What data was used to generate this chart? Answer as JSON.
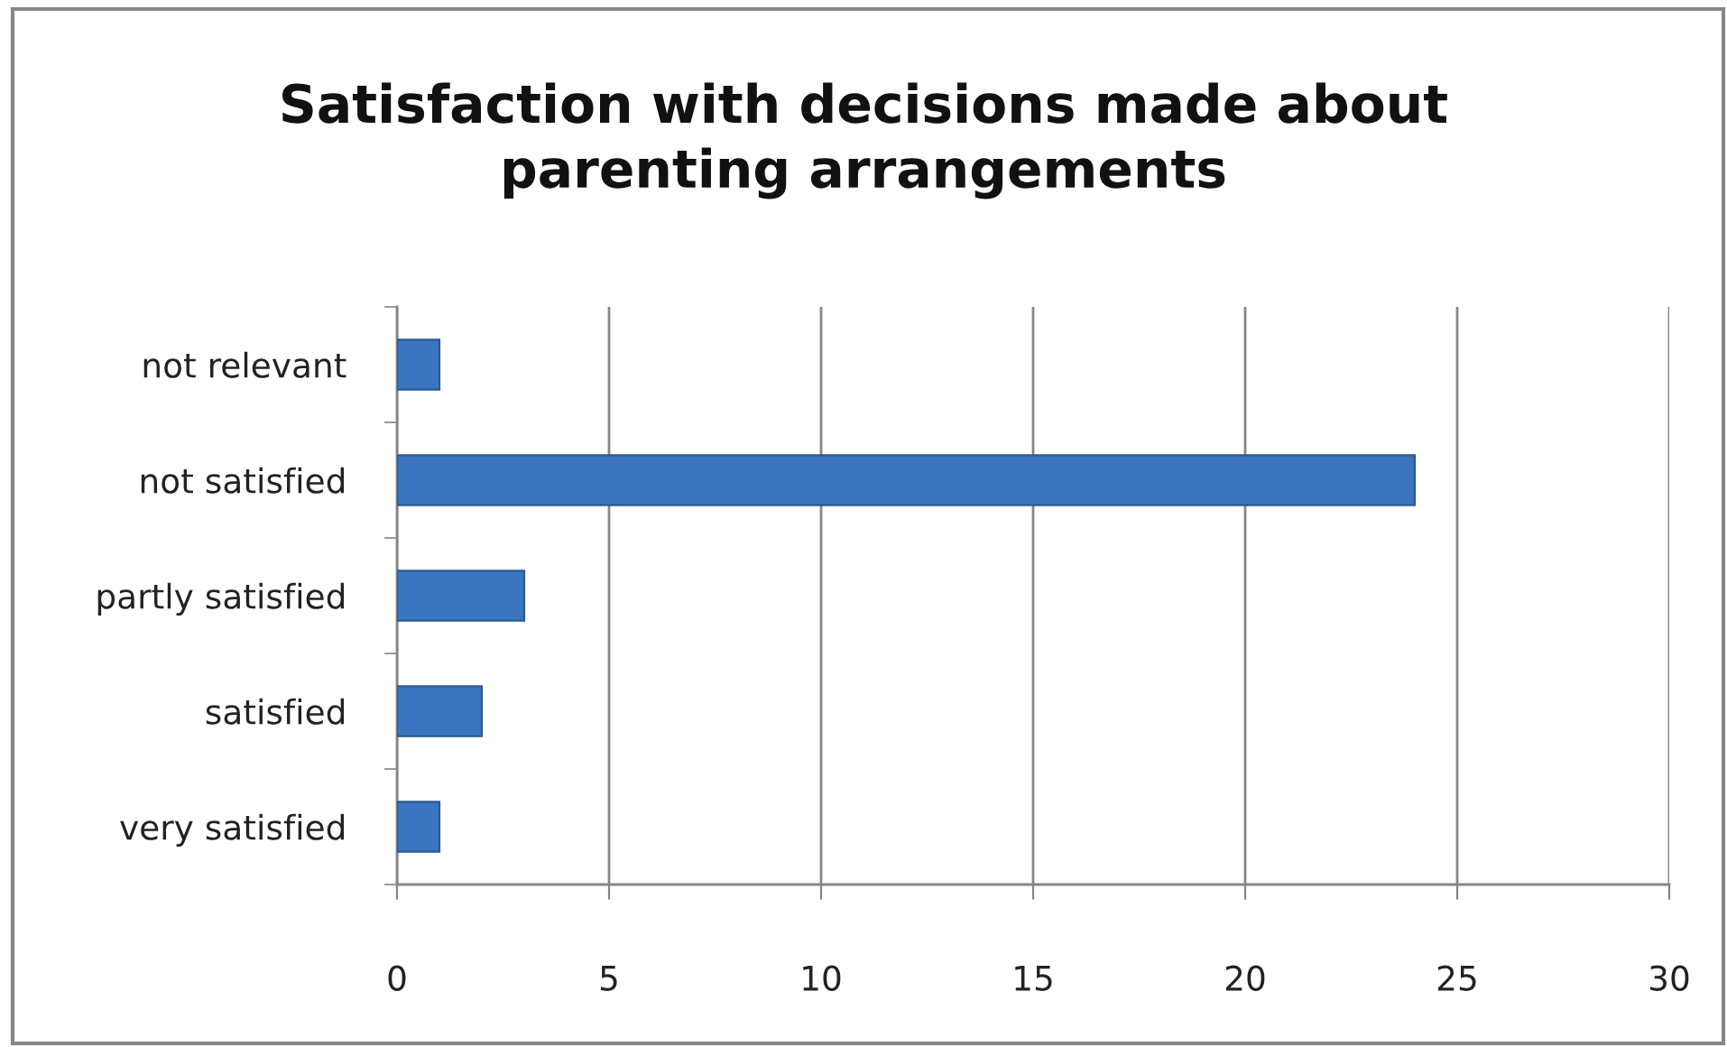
{
  "chart_data": {
    "type": "bar",
    "orientation": "horizontal",
    "title": "Satisfaction with decisions made about\nparenting arrangements",
    "categories": [
      "not relevant",
      "not satisfied",
      "partly satisfied",
      "satisfied",
      "very satisfied"
    ],
    "values": [
      1,
      24,
      3,
      2,
      1
    ],
    "color": "#3b75bf",
    "xlim": [
      0,
      30
    ],
    "xticks": [
      0,
      5,
      10,
      15,
      20,
      25,
      30
    ],
    "grid": "x"
  }
}
